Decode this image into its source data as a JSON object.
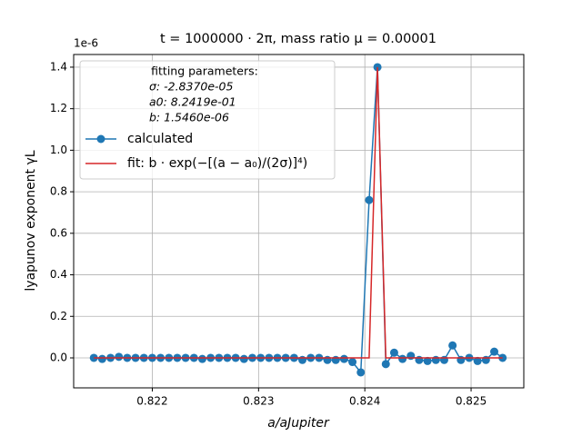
{
  "chart_data": {
    "type": "line",
    "title": "t = 1000000 · 2π, mass ratio μ = 0.00001",
    "x_label": "a/aJupiter",
    "y_label": "lyapunov exponent γL",
    "y_offset_label": "1e-6",
    "annotation": [
      "fitting parameters:",
      "σ: -2.8370e-05",
      "a0: 8.2419e-01",
      "b: 1.5460e-06"
    ],
    "x": [
      0.82145,
      0.8215285,
      0.821607,
      0.8216855,
      0.821764,
      0.8218425,
      0.821921,
      0.8219995,
      0.822078,
      0.8221565,
      0.822235,
      0.8223135,
      0.822392,
      0.8224705,
      0.822549,
      0.8226275,
      0.822706,
      0.8227845,
      0.822863,
      0.8229415,
      0.82302,
      0.8230985,
      0.823177,
      0.8232555,
      0.823334,
      0.8234125,
      0.823491,
      0.8235695,
      0.823648,
      0.8237265,
      0.823805,
      0.8238835,
      0.823962,
      0.8240405,
      0.824119,
      0.8241975,
      0.824276,
      0.8243545,
      0.824433,
      0.8245115,
      0.82459,
      0.8246685,
      0.824747,
      0.8248255,
      0.824904,
      0.8249825,
      0.825061,
      0.8251395,
      0.825218,
      0.8252965
    ],
    "series": [
      {
        "name": "calculated",
        "color": "#1f77b4",
        "marker": true,
        "values": [
          0,
          -0.005,
          0,
          0.005,
          0,
          0,
          0,
          0,
          0,
          0,
          0,
          0,
          0,
          -0.005,
          0,
          0,
          0,
          0,
          -0.005,
          0,
          0,
          0,
          0,
          0,
          0,
          -0.01,
          0,
          0,
          -0.01,
          -0.01,
          -0.005,
          -0.02,
          -0.07,
          0.76,
          1.4,
          -0.03,
          0.025,
          -0.005,
          0.01,
          -0.01,
          -0.015,
          -0.01,
          -0.01,
          0.06,
          -0.01,
          0,
          -0.015,
          -0.01,
          0.03,
          0
        ]
      },
      {
        "name": "fit: b · exp(−[(a − a₀)/(2σ)]⁴)",
        "color": "#d62728",
        "marker": false,
        "values": [
          0,
          0,
          0,
          0,
          0,
          0,
          0,
          0,
          0,
          0,
          0,
          0,
          0,
          0,
          0,
          0,
          0,
          0,
          0,
          0,
          0,
          0,
          0,
          0,
          0,
          0,
          0,
          0,
          0,
          0,
          0,
          0,
          0,
          0,
          1.4,
          0,
          0,
          0,
          0,
          0,
          0,
          0,
          0,
          0,
          0,
          0,
          0,
          0,
          0,
          0
        ]
      }
    ],
    "xlim": [
      0.82126,
      0.825496
    ],
    "ylim": [
      -0.1444,
      1.461
    ],
    "xticks": [
      0.822,
      0.823,
      0.824,
      0.825
    ],
    "yticks": [
      {
        "value": 0,
        "label": "0.0"
      },
      0.2,
      0.4,
      0.6,
      0.8,
      {
        "value": 1,
        "label": "1.0"
      },
      1.2,
      1.4
    ],
    "grid": true,
    "legend": "upper left"
  }
}
